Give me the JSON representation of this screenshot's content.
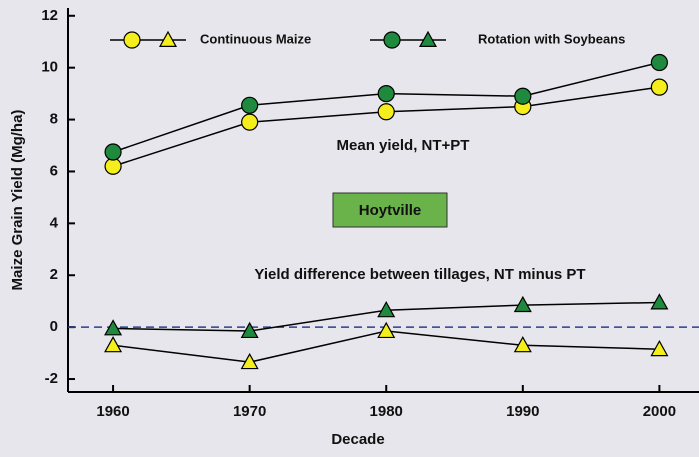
{
  "chart_data": {
    "type": "line",
    "xlabel": "Decade",
    "ylabel": "Maize Grain Yield (Mg/ha)",
    "x": [
      1960,
      1970,
      1980,
      1990,
      2000
    ],
    "xlim": [
      1956.7,
      2002.9
    ],
    "xticks": [
      1960,
      1970,
      1980,
      1990,
      2000
    ],
    "ylim": [
      -2.5,
      12.3
    ],
    "yticks": [
      -2,
      0,
      2,
      4,
      6,
      8,
      10,
      12
    ],
    "reference_line": 0,
    "annotations": [
      "Mean yield, NT+PT",
      "Hoytville",
      "Yield difference between tillages, NT minus PT"
    ],
    "series": [
      {
        "name": "Continuous Maize",
        "color": "#f4ee1c",
        "mean_values": [
          6.2,
          7.9,
          8.3,
          8.5,
          9.25
        ],
        "difference_values": [
          -0.7,
          -1.35,
          -0.15,
          -0.7,
          -0.85
        ]
      },
      {
        "name": "Rotation with Soybeans",
        "color": "#1f8a3e",
        "mean_values": [
          6.75,
          8.55,
          9.0,
          8.9,
          10.2
        ],
        "difference_values": [
          -0.05,
          -0.15,
          0.65,
          0.85,
          0.95
        ]
      }
    ]
  }
}
